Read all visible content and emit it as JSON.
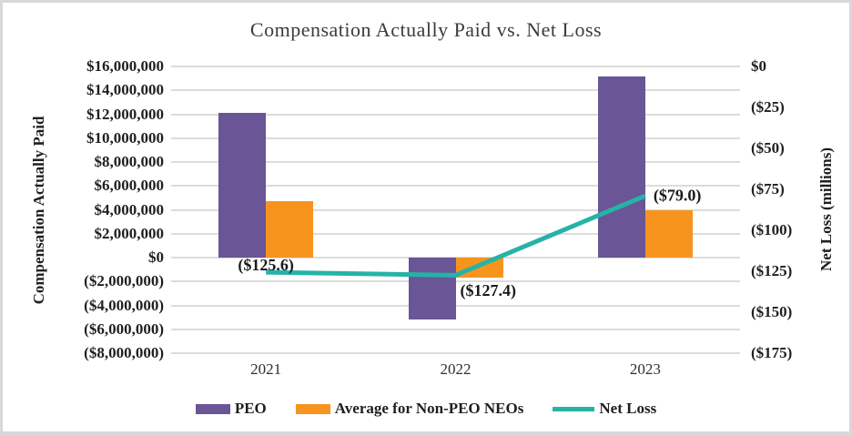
{
  "chart_data": {
    "type": "bar+line-combo",
    "title": "Compensation Actually Paid vs. Net Loss",
    "categories": [
      "2021",
      "2022",
      "2023"
    ],
    "series": [
      {
        "name": "PEO",
        "type": "bar",
        "axis": "left",
        "color": "#6A5596",
        "values": [
          12100000,
          -5200000,
          15200000
        ]
      },
      {
        "name": "Average for Non-PEO NEOs",
        "type": "bar",
        "axis": "left",
        "color": "#F7941E",
        "values": [
          4700000,
          -1700000,
          4000000
        ]
      },
      {
        "name": "Net Loss",
        "type": "line",
        "axis": "right",
        "color": "#26B3A7",
        "values": [
          -125.6,
          -127.4,
          -79.0
        ],
        "data_labels": [
          "($125.6)",
          "($127.4)",
          "($79.0)"
        ]
      }
    ],
    "left_axis": {
      "title": "Compensation Actually Paid",
      "min": -8000000,
      "max": 16000000,
      "tick_step": 2000000,
      "tick_labels": [
        "$16,000,000",
        "$14,000,000",
        "$12,000,000",
        "$10,000,000",
        "$8,000,000",
        "$6,000,000",
        "$4,000,000",
        "$2,000,000",
        "$0",
        "($2,000,000)",
        "($4,000,000)",
        "($6,000,000)",
        "($8,000,000)"
      ]
    },
    "right_axis": {
      "title": "Net Loss (millions)",
      "min": -175,
      "max": 0,
      "tick_step": 25,
      "tick_labels": [
        "$0",
        "($25)",
        "($50)",
        "($75)",
        "($100)",
        "($125)",
        "($150)",
        "($175)"
      ]
    },
    "grid": true,
    "legend_position": "bottom"
  }
}
